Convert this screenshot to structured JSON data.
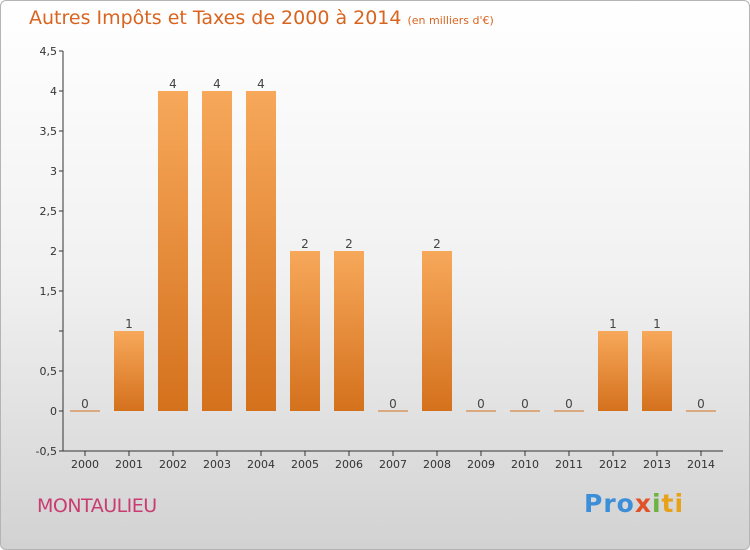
{
  "header": {
    "title": "Autres Impôts et Taxes de 2000 à 2014",
    "unit": "(en milliers d'€)"
  },
  "footer": {
    "place": "MONTAULIEU",
    "logo_parts": [
      "Pro",
      "x",
      "i",
      "ti"
    ]
  },
  "colors": {
    "title": "#d9641f",
    "place": "#c93c72",
    "bar_top": "#f7a85a",
    "bar_bottom": "#d4711d",
    "axis": "#333333"
  },
  "chart_data": {
    "type": "bar",
    "categories": [
      "2000",
      "2001",
      "2002",
      "2003",
      "2004",
      "2005",
      "2006",
      "2007",
      "2008",
      "2009",
      "2010",
      "2011",
      "2012",
      "2013",
      "2014"
    ],
    "values": [
      0,
      1,
      4,
      4,
      4,
      2,
      2,
      0,
      2,
      0,
      0,
      0,
      1,
      1,
      0
    ],
    "data_labels": [
      "0",
      "1",
      "4",
      "4",
      "4",
      "2",
      "2",
      "0",
      "2",
      "0",
      "0",
      "0",
      "1",
      "1",
      "0"
    ],
    "ylim": [
      -0.5,
      4.5
    ],
    "yticks": [
      -0.5,
      0,
      0.5,
      1,
      1.5,
      2,
      2.5,
      3,
      3.5,
      4,
      4.5
    ],
    "ytick_labels": [
      "-0,5",
      "0",
      "0,5",
      "",
      "1,5",
      "2",
      "2,5",
      "3",
      "3,5",
      "4",
      "4,5"
    ],
    "grid": false,
    "legend": "none"
  }
}
